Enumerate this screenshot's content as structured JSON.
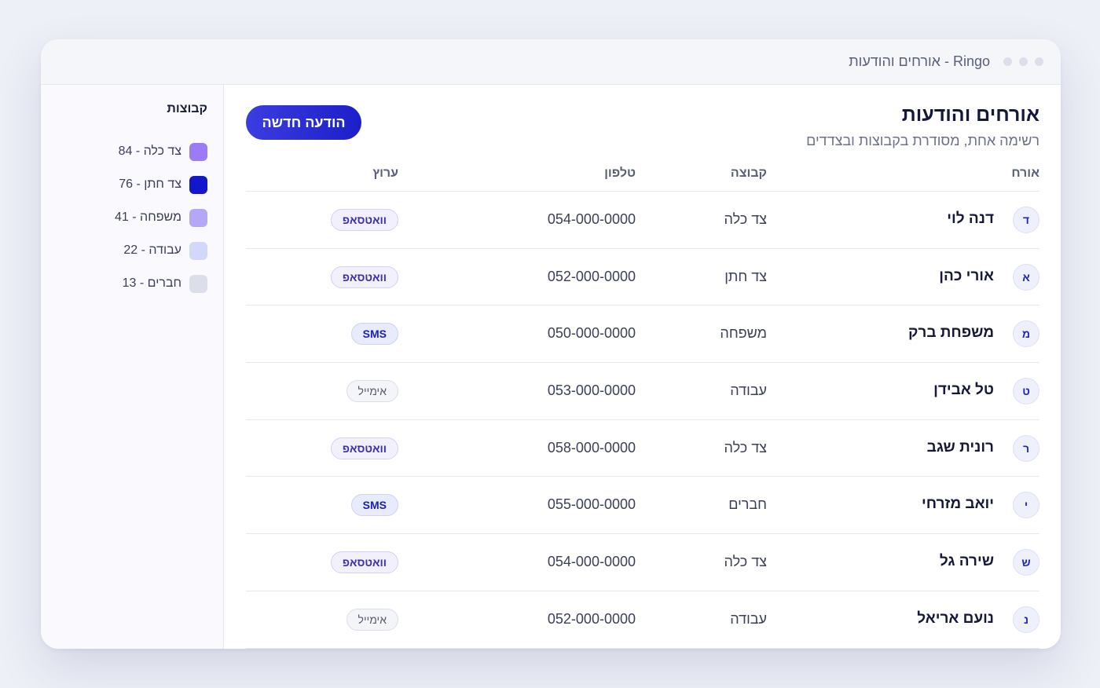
{
  "window": {
    "title": "Ringo - אורחים והודעות"
  },
  "sidebar": {
    "heading": "קבוצות",
    "groups": [
      {
        "label": "צד כלה - 84",
        "color": "#9a7cf6"
      },
      {
        "label": "צד חתן - 76",
        "color": "#1316c9"
      },
      {
        "label": "משפחה - 41",
        "color": "#b6a6f7"
      },
      {
        "label": "עבודה - 22",
        "color": "#d3d8fb"
      },
      {
        "label": "חברים - 13",
        "color": "#dcdfea"
      }
    ]
  },
  "main": {
    "title": "אורחים והודעות",
    "subtitle": "רשימה אחת, מסודרת בקבוצות ובצדדים",
    "new_message_label": "הודעה חדשה",
    "columns": {
      "guest": "אורח",
      "group": "קבוצה",
      "phone": "טלפון",
      "channel": "ערוץ"
    },
    "rows": [
      {
        "initial": "ד",
        "name": "דנה לוי",
        "group": "צד כלה",
        "phone": "054-000-0000",
        "channel": "וואטסאפ",
        "channel_type": "whatsapp"
      },
      {
        "initial": "א",
        "name": "אורי כהן",
        "group": "צד חתן",
        "phone": "052-000-0000",
        "channel": "וואטסאפ",
        "channel_type": "whatsapp"
      },
      {
        "initial": "מ",
        "name": "משפחת ברק",
        "group": "משפחה",
        "phone": "050-000-0000",
        "channel": "SMS",
        "channel_type": "sms"
      },
      {
        "initial": "ט",
        "name": "טל אבידן",
        "group": "עבודה",
        "phone": "053-000-0000",
        "channel": "אימייל",
        "channel_type": "email"
      },
      {
        "initial": "ר",
        "name": "רונית שגב",
        "group": "צד כלה",
        "phone": "058-000-0000",
        "channel": "וואטסאפ",
        "channel_type": "whatsapp"
      },
      {
        "initial": "י",
        "name": "יואב מזרחי",
        "group": "חברים",
        "phone": "055-000-0000",
        "channel": "SMS",
        "channel_type": "sms"
      },
      {
        "initial": "ש",
        "name": "שירה גל",
        "group": "צד כלה",
        "phone": "054-000-0000",
        "channel": "וואטסאפ",
        "channel_type": "whatsapp"
      },
      {
        "initial": "נ",
        "name": "נועם אריאל",
        "group": "עבודה",
        "phone": "052-000-0000",
        "channel": "אימייל",
        "channel_type": "email"
      }
    ]
  }
}
